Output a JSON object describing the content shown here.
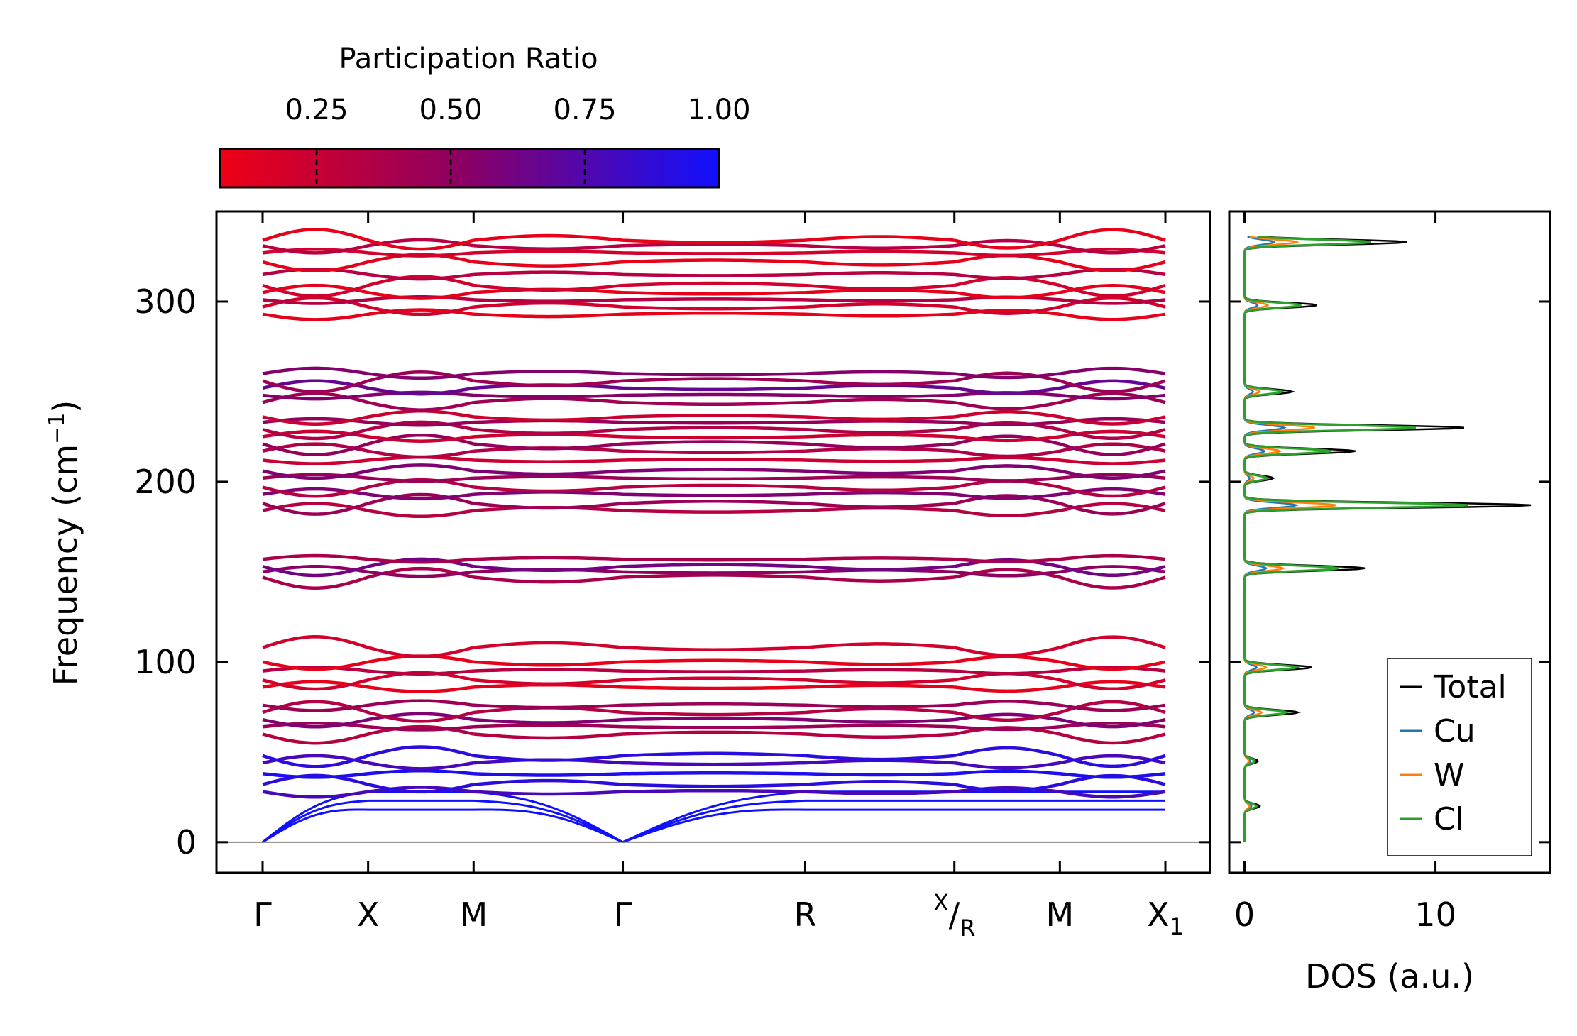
{
  "colorbar": {
    "title": "Participation Ratio",
    "ticks": [
      "0.25",
      "0.50",
      "0.75",
      "1.00"
    ],
    "tick_values": [
      0.25,
      0.5,
      0.75,
      1.0
    ],
    "range": [
      0.07,
      1.0
    ],
    "color_low": "#ee0000",
    "color_high": "#1010ff"
  },
  "chart_data": [
    {
      "type": "line",
      "title": "",
      "xlabel": "",
      "ylabel_text": "Frequency (cm",
      "ylabel_sup": "−1",
      "ylabel_close": ")",
      "ylim": [
        -17,
        350
      ],
      "yticks": [
        "0",
        "100",
        "200",
        "300"
      ],
      "ytick_values": [
        0,
        100,
        200,
        300
      ],
      "kpath": [
        "Γ",
        "X",
        "M",
        "Γ",
        "R",
        "X/R",
        "M",
        "X1"
      ],
      "kpath_x_start": "X",
      "kpath_x_sub": "R",
      "kpath_x1_base": "X",
      "kpath_x1_sub": "1",
      "kpath_positions": [
        0,
        0.7,
        1.4,
        2.39,
        3.6,
        4.59,
        5.29,
        5.99
      ],
      "band_groups": [
        {
          "name": "acoustic-low",
          "center_values": [
            0,
            12,
            22,
            28,
            32,
            38,
            44,
            48
          ],
          "pr": 0.9
        },
        {
          "name": "group-70",
          "center_values": [
            60,
            64,
            68,
            72,
            76
          ],
          "pr": 0.45
        },
        {
          "name": "group-95",
          "center_values": [
            86,
            90,
            95,
            100,
            108
          ],
          "pr": 0.2
        },
        {
          "name": "group-152",
          "center_values": [
            147,
            150,
            153,
            157
          ],
          "pr": 0.5
        },
        {
          "name": "group-195",
          "center_values": [
            184,
            188,
            193,
            197,
            202,
            206
          ],
          "pr": 0.45
        },
        {
          "name": "group-225",
          "center_values": [
            212,
            217,
            221,
            225,
            229,
            233,
            236
          ],
          "pr": 0.35
        },
        {
          "name": "group-252",
          "center_values": [
            244,
            248,
            252,
            256,
            260
          ],
          "pr": 0.55
        },
        {
          "name": "group-310",
          "center_values": [
            293,
            297,
            301,
            305,
            309,
            315,
            322,
            327,
            331,
            334
          ],
          "pr": 0.2
        }
      ]
    },
    {
      "type": "line",
      "title": "",
      "xlabel": "DOS (a.u.)",
      "ylabel": "",
      "xlim": [
        -0.8,
        16
      ],
      "xticks": [
        "0",
        "10"
      ],
      "xtick_values": [
        0,
        10
      ],
      "series": [
        {
          "name": "Total",
          "color": "#000000"
        },
        {
          "name": "Cu",
          "color": "#1f77b4"
        },
        {
          "name": "W",
          "color": "#ff7f0e"
        },
        {
          "name": "Cl",
          "color": "#2ca02c"
        }
      ],
      "peaks": [
        {
          "freq": 20,
          "total": 0.8
        },
        {
          "freq": 45,
          "total": 0.7
        },
        {
          "freq": 72,
          "total": 2.8
        },
        {
          "freq": 97,
          "total": 3.5
        },
        {
          "freq": 152,
          "total": 6.3
        },
        {
          "freq": 187,
          "total": 15.0
        },
        {
          "freq": 202,
          "total": 1.5
        },
        {
          "freq": 217,
          "total": 5.8
        },
        {
          "freq": 230,
          "total": 11.5
        },
        {
          "freq": 250,
          "total": 2.5
        },
        {
          "freq": 298,
          "total": 3.8
        },
        {
          "freq": 333,
          "total": 8.5
        }
      ],
      "legend": {
        "placement": "lower-right"
      }
    }
  ]
}
